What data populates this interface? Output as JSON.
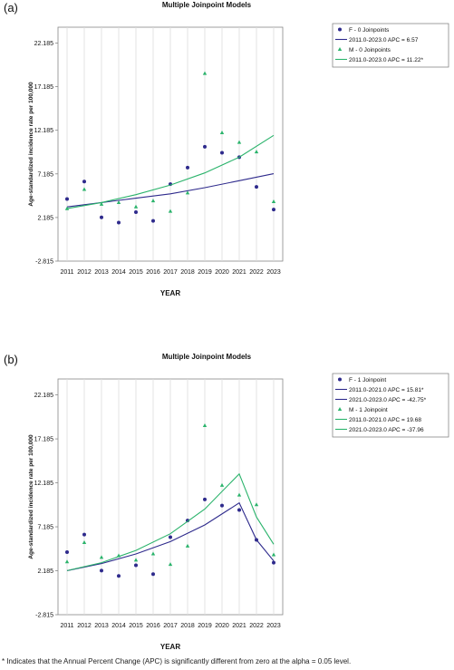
{
  "footnote": "* Indicates that the Annual Percent Change (APC) is significantly different from zero at the alpha = 0.05 level.",
  "colors": {
    "female": "#2e2a8c",
    "male": "#2ab36b",
    "grid": "#dcdcdc",
    "frame": "#888888"
  },
  "chart_data": [
    {
      "type": "scatter",
      "panel_label": "(a)",
      "title": "Multiple Joinpoint Models",
      "xlabel": "YEAR",
      "ylabel": "Age-standardized incidence rate per 100,000",
      "x": [
        2011,
        2012,
        2013,
        2014,
        2015,
        2016,
        2017,
        2018,
        2019,
        2020,
        2021,
        2022,
        2023
      ],
      "x_tick_labels": [
        "2011",
        "2012",
        "2013",
        "2014",
        "2015",
        "2016",
        "2017",
        "2018",
        "2019",
        "2020",
        "2021",
        "2022",
        "2023"
      ],
      "y_tick_labels": [
        "-2.815",
        "2.185",
        "7.185",
        "12.185",
        "17.185",
        "22.185"
      ],
      "ylim": [
        -2.815,
        24.0
      ],
      "grid": true,
      "legend_position": "right",
      "series": [
        {
          "key": "F",
          "name": "F - 0 Joinpoints",
          "marker": "circle",
          "observed": [
            4.3,
            6.3,
            2.2,
            1.6,
            2.8,
            1.8,
            6.0,
            7.9,
            10.3,
            9.6,
            9.1,
            5.7,
            3.1
          ],
          "fit_x": [
            2011,
            2013,
            2015,
            2017,
            2019,
            2021,
            2023
          ],
          "fit_y": [
            3.4,
            3.9,
            4.4,
            4.9,
            5.6,
            6.4,
            7.2
          ],
          "fit_legend": [
            "2011.0-2023.0 APC  =  6.57"
          ]
        },
        {
          "key": "M",
          "name": "M - 0 Joinpoints",
          "marker": "triangle",
          "observed": [
            3.2,
            5.4,
            3.7,
            3.9,
            3.4,
            4.1,
            2.9,
            5.0,
            18.7,
            11.9,
            10.8,
            9.7,
            4.0
          ],
          "fit_x": [
            2011,
            2013,
            2015,
            2017,
            2019,
            2021,
            2023
          ],
          "fit_y": [
            3.2,
            3.9,
            4.8,
            5.9,
            7.3,
            9.1,
            11.6
          ],
          "fit_legend": [
            "2011.0-2023.0 APC  =  11.22*"
          ]
        }
      ]
    },
    {
      "type": "scatter",
      "panel_label": "(b)",
      "title": "Multiple Joinpoint Models",
      "xlabel": "YEAR",
      "ylabel": "Age-standardized incidence rate per 100,000",
      "x": [
        2011,
        2012,
        2013,
        2014,
        2015,
        2016,
        2017,
        2018,
        2019,
        2020,
        2021,
        2022,
        2023
      ],
      "x_tick_labels": [
        "2011",
        "2012",
        "2013",
        "2014",
        "2015",
        "2016",
        "2017",
        "2018",
        "2019",
        "2020",
        "2021",
        "2022",
        "2023"
      ],
      "y_tick_labels": [
        "-2.815",
        "2.185",
        "7.185",
        "12.185",
        "17.185",
        "22.185"
      ],
      "ylim": [
        -2.815,
        24.0
      ],
      "grid": true,
      "legend_position": "right",
      "series": [
        {
          "key": "F",
          "name": "F - 1 Joinpoint",
          "marker": "circle",
          "observed": [
            4.3,
            6.3,
            2.2,
            1.6,
            2.8,
            1.8,
            6.0,
            7.9,
            10.3,
            9.6,
            9.1,
            5.7,
            3.1
          ],
          "fit_x": [
            2011,
            2013,
            2015,
            2017,
            2019,
            2021,
            2022,
            2023
          ],
          "fit_y": [
            2.2,
            3.0,
            4.1,
            5.5,
            7.4,
            9.9,
            5.7,
            3.3
          ],
          "fit_legend": [
            "2011.0-2021.0 APC  =  15.81*",
            "2021.0-2023.0 APC  =  -42.75*"
          ]
        },
        {
          "key": "M",
          "name": "M - 1 Joinpoint",
          "marker": "triangle",
          "observed": [
            3.2,
            5.4,
            3.7,
            3.9,
            3.4,
            4.1,
            2.9,
            5.0,
            18.7,
            11.9,
            10.8,
            9.7,
            4.0
          ],
          "fit_x": [
            2011,
            2013,
            2015,
            2017,
            2019,
            2021,
            2022,
            2023
          ],
          "fit_y": [
            2.2,
            3.1,
            4.5,
            6.4,
            9.2,
            13.2,
            8.3,
            5.2
          ],
          "fit_legend": [
            "2011.0-2021.0 APC  =  19.68",
            "2021.0-2023.0 APC  =  -37.96"
          ]
        }
      ]
    }
  ]
}
